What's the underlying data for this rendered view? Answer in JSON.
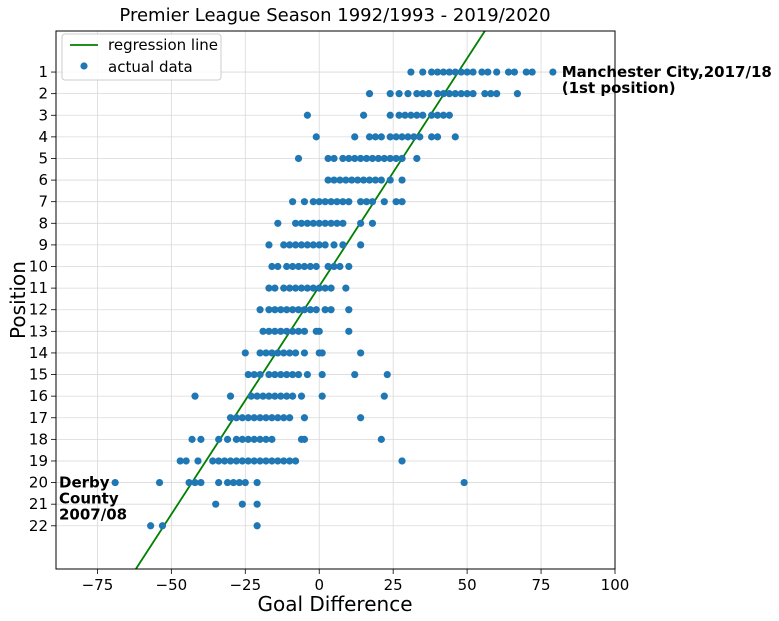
{
  "chart_data": {
    "type": "scatter",
    "title": "Premier League Season 1992/1993 - 2019/2020",
    "xlabel": "Goal Difference",
    "ylabel": "Position",
    "xlim": [
      -89,
      100
    ],
    "ylim": [
      24.0,
      -0.9
    ],
    "xticks": [
      -75,
      -50,
      -25,
      0,
      25,
      50,
      75,
      100
    ],
    "yticks": [
      1,
      2,
      3,
      4,
      5,
      6,
      7,
      8,
      9,
      10,
      11,
      12,
      13,
      14,
      15,
      16,
      17,
      18,
      19,
      20,
      21,
      22
    ],
    "grid": true,
    "legend_position": "top-left",
    "series": [
      {
        "name": "regression line",
        "kind": "line",
        "color": "#008000",
        "x": [
          -62,
          56
        ],
        "y": [
          24.0,
          -0.9
        ]
      },
      {
        "name": "actual data",
        "kind": "scatter",
        "color": "#1f77b4",
        "points": [
          [
            31,
            1
          ],
          [
            35,
            1
          ],
          [
            38,
            1
          ],
          [
            40,
            1
          ],
          [
            42,
            1
          ],
          [
            44,
            1
          ],
          [
            46,
            1
          ],
          [
            48,
            1
          ],
          [
            50,
            1
          ],
          [
            52,
            1
          ],
          [
            55,
            1
          ],
          [
            57,
            1
          ],
          [
            60,
            1
          ],
          [
            64,
            1
          ],
          [
            66,
            1
          ],
          [
            70,
            1
          ],
          [
            72,
            1
          ],
          [
            79,
            1
          ],
          [
            17,
            2
          ],
          [
            24,
            2
          ],
          [
            27,
            2
          ],
          [
            30,
            2
          ],
          [
            33,
            2
          ],
          [
            35,
            2
          ],
          [
            37,
            2
          ],
          [
            40,
            2
          ],
          [
            42,
            2
          ],
          [
            44,
            2
          ],
          [
            46,
            2
          ],
          [
            48,
            2
          ],
          [
            50,
            2
          ],
          [
            52,
            2
          ],
          [
            56,
            2
          ],
          [
            58,
            2
          ],
          [
            60,
            2
          ],
          [
            67,
            2
          ],
          [
            -4,
            3
          ],
          [
            15,
            3
          ],
          [
            24,
            3
          ],
          [
            27,
            3
          ],
          [
            29,
            3
          ],
          [
            31,
            3
          ],
          [
            33,
            3
          ],
          [
            35,
            3
          ],
          [
            38,
            3
          ],
          [
            40,
            3
          ],
          [
            42,
            3
          ],
          [
            44,
            3
          ],
          [
            -1,
            4
          ],
          [
            12,
            4
          ],
          [
            17,
            4
          ],
          [
            19,
            4
          ],
          [
            21,
            4
          ],
          [
            24,
            4
          ],
          [
            26,
            4
          ],
          [
            28,
            4
          ],
          [
            30,
            4
          ],
          [
            32,
            4
          ],
          [
            34,
            4
          ],
          [
            38,
            4
          ],
          [
            40,
            4
          ],
          [
            46,
            4
          ],
          [
            -7,
            5
          ],
          [
            3,
            5
          ],
          [
            5,
            5
          ],
          [
            8,
            5
          ],
          [
            10,
            5
          ],
          [
            12,
            5
          ],
          [
            14,
            5
          ],
          [
            16,
            5
          ],
          [
            18,
            5
          ],
          [
            20,
            5
          ],
          [
            22,
            5
          ],
          [
            24,
            5
          ],
          [
            26,
            5
          ],
          [
            28,
            5
          ],
          [
            33,
            5
          ],
          [
            3,
            6
          ],
          [
            5,
            6
          ],
          [
            7,
            6
          ],
          [
            9,
            6
          ],
          [
            11,
            6
          ],
          [
            13,
            6
          ],
          [
            15,
            6
          ],
          [
            17,
            6
          ],
          [
            19,
            6
          ],
          [
            21,
            6
          ],
          [
            24,
            6
          ],
          [
            28,
            6
          ],
          [
            -9,
            7
          ],
          [
            -5,
            7
          ],
          [
            -2,
            7
          ],
          [
            0,
            7
          ],
          [
            2,
            7
          ],
          [
            4,
            7
          ],
          [
            6,
            7
          ],
          [
            8,
            7
          ],
          [
            10,
            7
          ],
          [
            14,
            7
          ],
          [
            16,
            7
          ],
          [
            18,
            7
          ],
          [
            22,
            7
          ],
          [
            26,
            7
          ],
          [
            28,
            7
          ],
          [
            -14,
            8
          ],
          [
            -8,
            8
          ],
          [
            -6,
            8
          ],
          [
            -4,
            8
          ],
          [
            -2,
            8
          ],
          [
            0,
            8
          ],
          [
            2,
            8
          ],
          [
            4,
            8
          ],
          [
            6,
            8
          ],
          [
            8,
            8
          ],
          [
            14,
            8
          ],
          [
            18,
            8
          ],
          [
            -17,
            9
          ],
          [
            -12,
            9
          ],
          [
            -10,
            9
          ],
          [
            -8,
            9
          ],
          [
            -6,
            9
          ],
          [
            -4,
            9
          ],
          [
            -2,
            9
          ],
          [
            0,
            9
          ],
          [
            2,
            9
          ],
          [
            5,
            9
          ],
          [
            8,
            9
          ],
          [
            14,
            9
          ],
          [
            -16,
            10
          ],
          [
            -14,
            10
          ],
          [
            -11,
            10
          ],
          [
            -9,
            10
          ],
          [
            -7,
            10
          ],
          [
            -5,
            10
          ],
          [
            -3,
            10
          ],
          [
            -1,
            10
          ],
          [
            3,
            10
          ],
          [
            5,
            10
          ],
          [
            7,
            10
          ],
          [
            10,
            10
          ],
          [
            -17,
            11
          ],
          [
            -15,
            11
          ],
          [
            -12,
            11
          ],
          [
            -10,
            11
          ],
          [
            -8,
            11
          ],
          [
            -6,
            11
          ],
          [
            -4,
            11
          ],
          [
            -2,
            11
          ],
          [
            0,
            11
          ],
          [
            2,
            11
          ],
          [
            4,
            11
          ],
          [
            9,
            11
          ],
          [
            -20,
            12
          ],
          [
            -17,
            12
          ],
          [
            -15,
            12
          ],
          [
            -13,
            12
          ],
          [
            -11,
            12
          ],
          [
            -9,
            12
          ],
          [
            -7,
            12
          ],
          [
            -5,
            12
          ],
          [
            -3,
            12
          ],
          [
            -1,
            12
          ],
          [
            2,
            12
          ],
          [
            4,
            12
          ],
          [
            10,
            12
          ],
          [
            -19,
            13
          ],
          [
            -17,
            13
          ],
          [
            -15,
            13
          ],
          [
            -13,
            13
          ],
          [
            -11,
            13
          ],
          [
            -9,
            13
          ],
          [
            -7,
            13
          ],
          [
            -5,
            13
          ],
          [
            -1,
            13
          ],
          [
            0,
            13
          ],
          [
            10,
            13
          ],
          [
            -25,
            14
          ],
          [
            -20,
            14
          ],
          [
            -18,
            14
          ],
          [
            -16,
            14
          ],
          [
            -14,
            14
          ],
          [
            -12,
            14
          ],
          [
            -10,
            14
          ],
          [
            -8,
            14
          ],
          [
            -5,
            14
          ],
          [
            0,
            14
          ],
          [
            1,
            14
          ],
          [
            14,
            14
          ],
          [
            -24,
            15
          ],
          [
            -22,
            15
          ],
          [
            -20,
            15
          ],
          [
            -17,
            15
          ],
          [
            -15,
            15
          ],
          [
            -13,
            15
          ],
          [
            -11,
            15
          ],
          [
            -9,
            15
          ],
          [
            -7,
            15
          ],
          [
            -4,
            15
          ],
          [
            1,
            15
          ],
          [
            12,
            15
          ],
          [
            23,
            15
          ],
          [
            -42,
            16
          ],
          [
            -30,
            16
          ],
          [
            -23,
            16
          ],
          [
            -21,
            16
          ],
          [
            -19,
            16
          ],
          [
            -17,
            16
          ],
          [
            -15,
            16
          ],
          [
            -13,
            16
          ],
          [
            -11,
            16
          ],
          [
            -9,
            16
          ],
          [
            -6,
            16
          ],
          [
            1,
            16
          ],
          [
            22,
            16
          ],
          [
            -30,
            17
          ],
          [
            -28,
            17
          ],
          [
            -26,
            17
          ],
          [
            -24,
            17
          ],
          [
            -22,
            17
          ],
          [
            -20,
            17
          ],
          [
            -18,
            17
          ],
          [
            -16,
            17
          ],
          [
            -14,
            17
          ],
          [
            -12,
            17
          ],
          [
            -10,
            17
          ],
          [
            -5,
            17
          ],
          [
            14,
            17
          ],
          [
            -43,
            18
          ],
          [
            -40,
            18
          ],
          [
            -34,
            18
          ],
          [
            -31,
            18
          ],
          [
            -28,
            18
          ],
          [
            -26,
            18
          ],
          [
            -24,
            18
          ],
          [
            -22,
            18
          ],
          [
            -20,
            18
          ],
          [
            -18,
            18
          ],
          [
            -16,
            18
          ],
          [
            -6,
            18
          ],
          [
            -5,
            18
          ],
          [
            21,
            18
          ],
          [
            -47,
            19
          ],
          [
            -45,
            19
          ],
          [
            -41,
            19
          ],
          [
            -36,
            19
          ],
          [
            -34,
            19
          ],
          [
            -32,
            19
          ],
          [
            -30,
            19
          ],
          [
            -28,
            19
          ],
          [
            -26,
            19
          ],
          [
            -24,
            19
          ],
          [
            -22,
            19
          ],
          [
            -20,
            19
          ],
          [
            -18,
            19
          ],
          [
            -16,
            19
          ],
          [
            -14,
            19
          ],
          [
            -12,
            19
          ],
          [
            -10,
            19
          ],
          [
            -8,
            19
          ],
          [
            28,
            19
          ],
          [
            -69,
            20
          ],
          [
            -54,
            20
          ],
          [
            -44,
            20
          ],
          [
            -42,
            20
          ],
          [
            -40,
            20
          ],
          [
            -34,
            20
          ],
          [
            -31,
            20
          ],
          [
            -29,
            20
          ],
          [
            -27,
            20
          ],
          [
            -25,
            20
          ],
          [
            -21,
            20
          ],
          [
            49,
            20
          ],
          [
            -35,
            21
          ],
          [
            -26,
            21
          ],
          [
            -21,
            21
          ],
          [
            -57,
            22
          ],
          [
            -53,
            22
          ],
          [
            -21,
            22
          ]
        ]
      }
    ],
    "annotations": [
      {
        "lines": [
          "Manchester City,2017/18",
          " (1st position)"
        ],
        "anchor": [
          82,
          1
        ]
      },
      {
        "lines": [
          "Derby",
          "County",
          "2007/08"
        ],
        "anchor": [
          -89,
          20
        ]
      }
    ]
  }
}
